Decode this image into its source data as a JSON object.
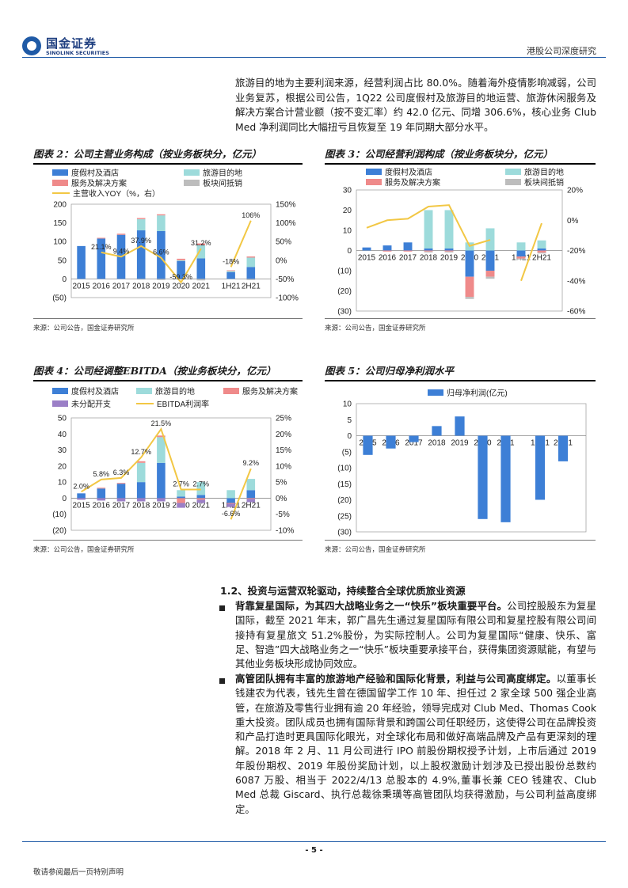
{
  "header": {
    "logo_cn": "国金证券",
    "logo_en": "SINOLINK SECURITIES",
    "report_type": "港股公司深度研究"
  },
  "intro_text": "旅游目的地为主要利润来源，经营利润占比 80.0%。随着海外疫情影响减弱，公司业务复苏，根据公司公告，1Q22 公司度假村及旅游目的地运营、旅游休闲服务及解决方案合计营业额（按不变汇率）约 42.0 亿元、同增 306.6%，核心业务 Club Med 净利润同比大幅扭亏且恢复至 19 年同期大部分水平。",
  "figures": {
    "fig2": {
      "title": "图表 2：公司主营业务构成（按业务板块分，亿元）",
      "source": "来源：公司公告，国金证券研究所"
    },
    "fig3": {
      "title": "图表 3：公司经营利润构成（按业务板块分，亿元）",
      "source": "来源：公司公告，国金证券研究所"
    },
    "fig4": {
      "title": "图表 4：公司经调整EBITDA（按业务板块分，亿元）",
      "source": "来源：公司公告，国金证券研究所"
    },
    "fig5": {
      "title": "图表 5：公司归母净利润水平",
      "source": "来源：公司公告，国金证券研究所"
    }
  },
  "chart_data": [
    {
      "type": "bar",
      "stacked": true,
      "categories": [
        "2015",
        "2016",
        "2017",
        "2018",
        "2019",
        "2020",
        "2021",
        "1H21",
        "2H21"
      ],
      "series": [
        {
          "name": "度假村及酒店",
          "color": "#3d7fd6",
          "values": [
            88,
            108,
            118,
            130,
            128,
            48,
            55,
            18,
            32
          ]
        },
        {
          "name": "旅游目的地",
          "color": "#9ddbdb",
          "values": [
            0,
            0,
            0,
            30,
            42,
            2,
            35,
            3,
            25
          ]
        },
        {
          "name": "服务及解决方案",
          "color": "#ef8a8a",
          "values": [
            0,
            2,
            3,
            3,
            3,
            4,
            5,
            2,
            3
          ]
        },
        {
          "name": "板块间抵销",
          "color": "#bdbdbd",
          "values": [
            0,
            0,
            0,
            -2,
            -3,
            -1,
            -4,
            -1,
            -3
          ]
        }
      ],
      "line": {
        "name": "主营收入YOY（%，右）",
        "color": "#f2c744",
        "values": [
          null,
          21.1,
          9.4,
          37.9,
          6.6,
          -59.3,
          31.2,
          -18,
          106
        ],
        "labels": [
          "",
          "21.1%",
          "9.4%",
          "37.9%",
          "6.6%",
          "-59.3%",
          "31.2%",
          "-18%",
          "106%"
        ]
      },
      "ylim": [
        -50,
        200
      ],
      "yticks": [
        "(50)",
        "0",
        "50",
        "100",
        "150",
        "200"
      ],
      "y2lim": [
        -100,
        150
      ],
      "y2ticks": [
        "-100%",
        "-50%",
        "0%",
        "50%",
        "100%",
        "150%"
      ]
    },
    {
      "type": "bar",
      "stacked": true,
      "categories": [
        "2015",
        "2016",
        "2017",
        "2018",
        "2019",
        "2020",
        "2021",
        "1H21",
        "2H21"
      ],
      "series": [
        {
          "name": "度假村及酒店",
          "color": "#3d7fd6",
          "values": [
            1.5,
            2.5,
            4,
            1,
            1,
            -13,
            -10,
            -3,
            1
          ]
        },
        {
          "name": "旅游目的地",
          "color": "#9ddbdb",
          "values": [
            0,
            0,
            0,
            19,
            19,
            4,
            11,
            4,
            4
          ]
        },
        {
          "name": "服务及解决方案",
          "color": "#ef8a8a",
          "values": [
            0,
            -0.5,
            -0.5,
            -0.5,
            -0.5,
            -10,
            -3,
            -1,
            -1
          ]
        },
        {
          "name": "板块间抵销",
          "color": "#bdbdbd",
          "values": [
            0,
            0,
            0,
            -0.5,
            -0.5,
            -1,
            -1,
            -0.5,
            -0.5
          ]
        }
      ],
      "line": {
        "name": "经营利润率",
        "color": "#f2c744",
        "values": [
          -5,
          0,
          1,
          9,
          10,
          -17,
          -13,
          -40,
          -2
        ],
        "labels": []
      },
      "ylim": [
        -30,
        30
      ],
      "yticks": [
        "(30)",
        "(20)",
        "(10)",
        "0",
        "10",
        "20",
        "30"
      ],
      "y2lim": [
        -60,
        20
      ],
      "y2ticks": [
        "-60%",
        "-40%",
        "-20%",
        "0%",
        "20%"
      ]
    },
    {
      "type": "bar",
      "stacked": true,
      "categories": [
        "2015",
        "2016",
        "2017",
        "2018",
        "2019",
        "2020",
        "2021",
        "1H21",
        "2H21"
      ],
      "series": [
        {
          "name": "度假村及酒店",
          "color": "#3d7fd6",
          "values": [
            3,
            6,
            9,
            10,
            22,
            1,
            2,
            -3,
            5
          ]
        },
        {
          "name": "旅游目的地",
          "color": "#9ddbdb",
          "values": [
            0,
            0,
            0,
            12,
            16,
            4,
            8,
            5,
            7
          ]
        },
        {
          "name": "服务及解决方案",
          "color": "#ef8a8a",
          "values": [
            0,
            0.5,
            0.5,
            1,
            1,
            -3,
            -1,
            -0.5,
            -0.5
          ]
        },
        {
          "name": "未分配开支",
          "color": "#9b7fc7",
          "values": [
            -1,
            -1.5,
            -2,
            -2,
            -2,
            -3,
            -2,
            -2,
            -2
          ]
        }
      ],
      "line": {
        "name": "EBITDA利润率",
        "color": "#f2c744",
        "values": [
          2.0,
          5.8,
          6.3,
          12.7,
          21.5,
          2.7,
          2.7,
          -6.6,
          9.2
        ],
        "labels": [
          "2.0%",
          "5.8%",
          "6.3%",
          "12.7%",
          "21.5%",
          "2.7%",
          "2.7%",
          "-6.6%",
          "9.2%"
        ]
      },
      "ylim": [
        -20,
        50
      ],
      "yticks": [
        "(20)",
        "(10)",
        "0",
        "10",
        "20",
        "30",
        "40",
        "50"
      ],
      "y2lim": [
        -10,
        25
      ],
      "y2ticks": [
        "-10%",
        "-5%",
        "0%",
        "5%",
        "10%",
        "15%",
        "20%",
        "25%"
      ]
    },
    {
      "type": "bar",
      "categories": [
        "2015",
        "2016",
        "2017",
        "2018",
        "2019",
        "2020",
        "2021",
        "1H21",
        "2H21"
      ],
      "series": [
        {
          "name": "归母净利润(亿元)",
          "color": "#3d7fd6",
          "values": [
            -6,
            -4,
            -2,
            3,
            6,
            -26,
            -27,
            -20,
            -8
          ]
        }
      ],
      "ylim": [
        -30,
        10
      ],
      "yticks": [
        "(30)",
        "(25)",
        "(20)",
        "(15)",
        "(10)",
        "(5)",
        "0",
        "5",
        "10"
      ]
    }
  ],
  "section": {
    "title": "1.2、投资与运营双轮驱动，持续整合全球优质旅业资源",
    "bullets": [
      {
        "bold": "背靠复星国际，为其四大战略业务之一“快乐”板块重要平台。",
        "text": "公司控股股东为复星国际，截至 2021 年末，郭广昌先生通过复星国际有限公司和复星控股有限公司间接持有复星旅文 51.2%股份，为实际控制人。公司为复星国际“健康、快乐、富足、智造”四大战略业务之一“快乐”板块重要承接平台，获得集团资源赋能，有望与其他业务板块形成协同效应。"
      },
      {
        "bold": "高管团队拥有丰富的旅游地产经验和国际化背景，利益与公司高度绑定。",
        "text": "以董事长钱建农为代表，钱先生曾在德国留学工作 10 年、担任过 2 家全球 500 强企业高管，在旅游及零售行业拥有逾 20 年经验，领导完成对 Club Med、Thomas Cook 重大投资。团队成员也拥有国际背景和跨国公司任职经历，这使得公司在品牌投资和产品打造时更具国际化眼光，对全球化布局和做好高端品牌及产品有更深刻的理解。2018 年 2 月、11 月公司进行 IPO 前股份期权授予计划，上市后通过 2019 年股份期权、2019 年股份奖励计划，以上股权激励计划涉及已授出股份总数约 6087 万股、相当于 2022/4/13 总股本的 4.9%,董事长兼 CEO 钱建农、Club Med 总裁 Giscard、执行总裁徐秉璜等高管团队均获得激励，与公司利益高度绑定。"
      }
    ]
  },
  "footer": {
    "page": "- 5 -",
    "disclaimer": "敬请参阅最后一页特别声明"
  }
}
